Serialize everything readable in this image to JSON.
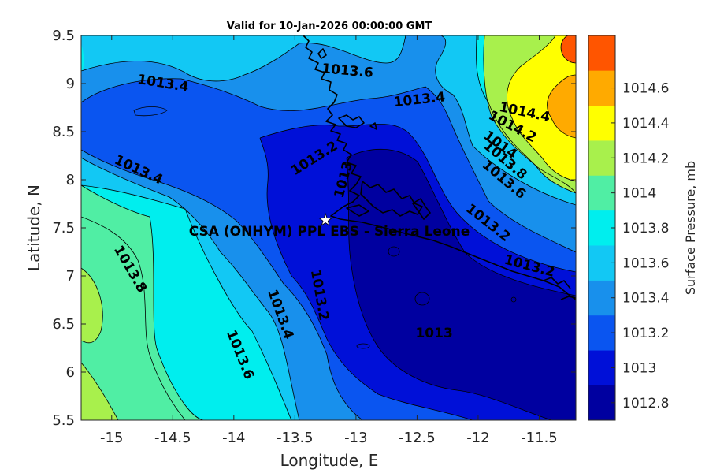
{
  "chart_data": {
    "type": "contour",
    "title": "Valid for 10-Jan-2026 00:00:00 GMT",
    "xlabel": "Longitude, E",
    "ylabel": "Latitude, N",
    "xlim": [
      -15.25,
      -11.2
    ],
    "ylim": [
      5.5,
      9.5
    ],
    "xticks": [
      -15,
      -14.5,
      -14,
      -13.5,
      -13,
      -12.5,
      -12,
      -11.5
    ],
    "xtick_labels": [
      "-15",
      "-14.5",
      "-14",
      "-13.5",
      "-13",
      "-12.5",
      "-12",
      "-11.5"
    ],
    "yticks": [
      5.5,
      6,
      6.5,
      7,
      7.5,
      8,
      8.5,
      9,
      9.5
    ],
    "ytick_labels": [
      "5.5",
      "6",
      "6.5",
      "7",
      "7.5",
      "8",
      "8.5",
      "9",
      "9.5"
    ],
    "colorbar": {
      "label": "Surface Pressure, mb",
      "levels": [
        1012.8,
        1013,
        1013.2,
        1013.4,
        1013.6,
        1013.8,
        1014,
        1014.2,
        1014.4,
        1014.6
      ],
      "level_labels": [
        "1012.8",
        "1013",
        "1013.2",
        "1013.4",
        "1013.6",
        "1013.8",
        "1014",
        "1014.2",
        "1014.4",
        "1014.6"
      ],
      "colors": [
        "#0000a0",
        "#0010d8",
        "#0a55f0",
        "#1890ec",
        "#12c8f4",
        "#00eeee",
        "#50eea4",
        "#a8f04c",
        "#ffff00",
        "#ffaa00",
        "#ff5500"
      ]
    },
    "site": {
      "name": "CSA (ONHYM) PPL EBS  - Sierra Leone",
      "lon": -13.25,
      "lat": 7.58
    },
    "contour_labels": [
      {
        "text": "1013.6",
        "lon": -13.07,
        "lat": 9.13,
        "angle": 5
      },
      {
        "text": "1013.4",
        "lon": -14.58,
        "lat": 9.0,
        "angle": 9
      },
      {
        "text": "1013.4",
        "lon": -12.48,
        "lat": 8.83,
        "angle": -6
      },
      {
        "text": "1014.4",
        "lon": -11.62,
        "lat": 8.7,
        "angle": 12
      },
      {
        "text": "1014.2",
        "lon": -11.72,
        "lat": 8.55,
        "angle": 28
      },
      {
        "text": "1014",
        "lon": -11.82,
        "lat": 8.36,
        "angle": 36
      },
      {
        "text": "1013.8",
        "lon": -11.78,
        "lat": 8.2,
        "angle": 40
      },
      {
        "text": "1013.6",
        "lon": -11.79,
        "lat": 8.0,
        "angle": 40
      },
      {
        "text": "1013.4",
        "lon": -14.78,
        "lat": 8.1,
        "angle": 25
      },
      {
        "text": "1013.2",
        "lon": -13.34,
        "lat": 8.22,
        "angle": -32
      },
      {
        "text": "1013",
        "lon": -13.1,
        "lat": 8.0,
        "angle": -75
      },
      {
        "text": "1013.2",
        "lon": -11.92,
        "lat": 7.55,
        "angle": 38
      },
      {
        "text": "1013.2",
        "lon": -11.58,
        "lat": 7.1,
        "angle": 15
      },
      {
        "text": "1013.8",
        "lon": -14.85,
        "lat": 7.07,
        "angle": 60
      },
      {
        "text": "1013.4",
        "lon": -13.62,
        "lat": 6.6,
        "angle": 70
      },
      {
        "text": "1013.2",
        "lon": -13.3,
        "lat": 6.8,
        "angle": 80
      },
      {
        "text": "1013.6",
        "lon": -13.95,
        "lat": 6.18,
        "angle": 68
      },
      {
        "text": "1013",
        "lon": -12.36,
        "lat": 6.4,
        "angle": 0
      }
    ]
  }
}
